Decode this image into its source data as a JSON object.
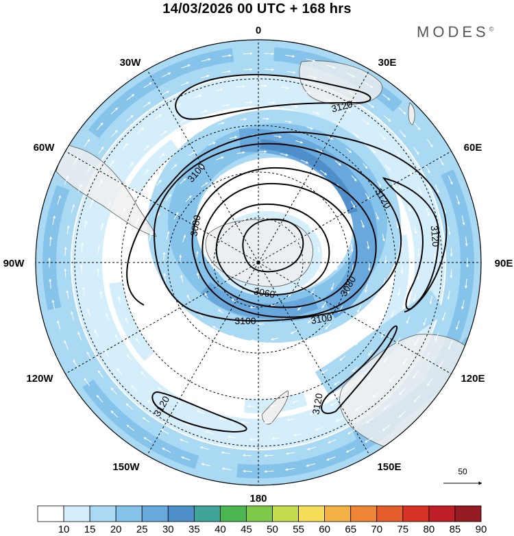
{
  "header": {
    "title": "14/03/2026  00 UTC  + 168 hrs",
    "brand": "MODES",
    "brand_mark": "©"
  },
  "map": {
    "projection": "south-polar-stereographic",
    "longitude_labels": [
      "0",
      "30E",
      "60E",
      "90E",
      "120E",
      "150E",
      "180",
      "150W",
      "120W",
      "90W",
      "60W",
      "30W"
    ],
    "contour_labels": [
      "3120",
      "3120",
      "3120",
      "3120",
      "3120",
      "3100",
      "3100",
      "3100",
      "3080",
      "3080",
      "3060"
    ],
    "vector_reference": {
      "value": "50"
    },
    "colors": {
      "land": "#efefef",
      "coast": "#555555"
    }
  },
  "colorbar": {
    "labels": [
      "10",
      "15",
      "20",
      "25",
      "30",
      "35",
      "40",
      "45",
      "50",
      "55",
      "60",
      "65",
      "70",
      "75",
      "80",
      "85",
      "90"
    ],
    "colors": [
      "#ffffff",
      "#d5eefb",
      "#aad9f3",
      "#86c3ea",
      "#69a8dc",
      "#4f8fc9",
      "#3fa59a",
      "#4cb650",
      "#7fc94a",
      "#c5dc4e",
      "#f5df5a",
      "#f4b146",
      "#ef8536",
      "#e65d2c",
      "#d83425",
      "#bf2027",
      "#941c22"
    ]
  }
}
